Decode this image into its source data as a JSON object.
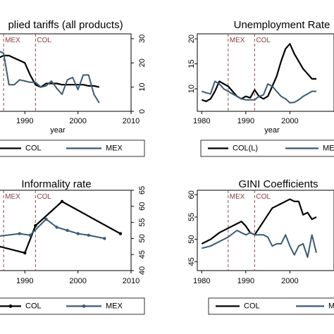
{
  "figure": {
    "colors": {
      "col": "#000000",
      "mex": "#3b5b72",
      "event_line": "#8a4a4a",
      "frame": "#000000"
    },
    "events": [
      {
        "label": "MEX",
        "year": 1986
      },
      {
        "label": "COL",
        "year": 1992
      }
    ]
  },
  "chart_data": [
    {
      "type": "line",
      "title": "Applied tariffs (all products)",
      "visible_title": "plied tariffs (all products)",
      "xlabel": "year",
      "ylabel": "",
      "xlim": [
        1982,
        2010
      ],
      "ylim": [
        0,
        32
      ],
      "xticks": [
        1990,
        2000,
        2010
      ],
      "yticks": [
        0,
        10,
        20,
        30
      ],
      "y_axis_side": "right",
      "legend_position": "bottom",
      "series": [
        {
          "name": "COL",
          "key": "col",
          "marker": "none",
          "x": [
            1984,
            1985,
            1986,
            1987,
            1988,
            1989,
            1990,
            1991,
            1992,
            1993,
            1994,
            1995,
            1996,
            1997,
            1998,
            1999,
            2000,
            2001,
            2002,
            2003,
            2004
          ],
          "y": [
            27,
            22,
            23,
            23,
            22,
            21,
            20,
            15,
            11,
            10,
            11.5,
            11.5,
            11.5,
            11,
            11,
            11,
            11,
            11,
            10.5,
            10.5,
            10
          ]
        },
        {
          "name": "MEX",
          "key": "mex",
          "marker": "none",
          "x": [
            1984,
            1985,
            1986,
            1987,
            1988,
            1989,
            1990,
            1991,
            1992,
            1993,
            1994,
            1995,
            1996,
            1997,
            1998,
            1999,
            2000,
            2001,
            2002,
            2003,
            2004
          ],
          "y": [
            23,
            25,
            24,
            11,
            11,
            13,
            12.5,
            12,
            12,
            10,
            10.5,
            12.5,
            9.5,
            7,
            13,
            14,
            9,
            15,
            15,
            7,
            3.5
          ]
        }
      ]
    },
    {
      "type": "line",
      "title": "Unemployment Rate",
      "visible_title": "Unemployment Rate",
      "xlabel": "year",
      "ylabel": "",
      "xlim": [
        1979,
        2010
      ],
      "ylim": [
        5.5,
        21
      ],
      "xticks": [
        1980,
        1990,
        2000
      ],
      "yticks": [
        5,
        10,
        15,
        20
      ],
      "y_axis_side": "left",
      "legend_position": "bottom",
      "series": [
        {
          "name": "COL(L)",
          "key": "col",
          "marker": "none",
          "x": [
            1980,
            1981,
            1982,
            1983,
            1984,
            1985,
            1986,
            1987,
            1988,
            1989,
            1990,
            1991,
            1992,
            1993,
            1994,
            1995,
            1996,
            1997,
            1998,
            1999,
            2000,
            2001,
            2002,
            2003,
            2004,
            2005,
            2006
          ],
          "y": [
            7.8,
            7.5,
            8.0,
            9.5,
            11.5,
            11.0,
            10.5,
            9.5,
            8.5,
            8.0,
            8.5,
            8.2,
            9.8,
            8.5,
            8.0,
            8.5,
            10.5,
            12.5,
            15.5,
            18.0,
            19.0,
            17.0,
            15.5,
            14.0,
            13.0,
            12.0,
            12.0
          ]
        },
        {
          "name": "MEX",
          "key": "mex",
          "marker": "none",
          "x": [
            1980,
            1981,
            1982,
            1983,
            1984,
            1985,
            1986,
            1987,
            1988,
            1989,
            1990,
            1991,
            1992,
            1993,
            1994,
            1995,
            1996,
            1997,
            1998,
            1999,
            2000,
            2001,
            2002,
            2003,
            2004,
            2005,
            2006
          ],
          "y": [
            9.5,
            9.2,
            9.0,
            11.5,
            11.0,
            10.0,
            9.5,
            9.0,
            8.5,
            8.0,
            7.8,
            7.8,
            7.8,
            8.5,
            8.8,
            11.0,
            10.5,
            9.5,
            8.5,
            8.0,
            7.2,
            7.3,
            7.8,
            8.5,
            9.0,
            9.5,
            9.5
          ]
        }
      ]
    },
    {
      "type": "line",
      "title": "Informality rate",
      "visible_title": "Informality rate",
      "xlabel": "",
      "ylabel": "",
      "xlim": [
        1982,
        2010
      ],
      "ylim": [
        40,
        65
      ],
      "xticks": [
        1990,
        2000,
        2010
      ],
      "yticks": [
        40,
        45,
        50,
        55,
        60,
        65
      ],
      "y_axis_side": "right",
      "legend_position": "bottom",
      "series": [
        {
          "name": "COL",
          "key": "col",
          "marker": "dot",
          "x": [
            1984,
            1990,
            1992,
            1997,
            2008
          ],
          "y": [
            48,
            45.5,
            54,
            61.5,
            51.5
          ]
        },
        {
          "name": "MEX",
          "key": "mex",
          "marker": "dot",
          "x": [
            1984,
            1989,
            1991,
            1994,
            1996,
            1998,
            2000,
            2002,
            2005
          ],
          "y": [
            50.5,
            51.5,
            51,
            56,
            53.5,
            52.5,
            51.5,
            51,
            50
          ]
        }
      ]
    },
    {
      "type": "line",
      "title": "GINI Coefficients",
      "visible_title": "GINI Coefficients",
      "xlabel": "",
      "ylabel": "",
      "xlim": [
        1979,
        2010
      ],
      "ylim": [
        43,
        61
      ],
      "xticks": [
        1980,
        1990,
        2000
      ],
      "yticks": [
        45,
        50,
        55,
        60
      ],
      "y_axis_side": "left",
      "legend_position": "bottom",
      "series": [
        {
          "name": "COL",
          "key": "col",
          "marker": "none",
          "x": [
            1980,
            1982,
            1984,
            1986,
            1988,
            1989,
            1990,
            1991,
            1992,
            1993,
            1994,
            1995,
            1996,
            1997,
            1998,
            1999,
            2000,
            2001,
            2002,
            2003,
            2004,
            2005,
            2006
          ],
          "y": [
            49,
            50,
            51.5,
            52.5,
            53.5,
            54,
            53,
            51.5,
            51,
            52.5,
            54,
            55.5,
            57,
            57.5,
            58,
            58.5,
            59,
            58.5,
            58.5,
            55.5,
            56,
            54.5,
            55
          ]
        },
        {
          "name": "MEX",
          "key": "mex",
          "marker": "none",
          "x": [
            1980,
            1982,
            1984,
            1986,
            1988,
            1989,
            1990,
            1991,
            1992,
            1993,
            1994,
            1995,
            1996,
            1997,
            1998,
            1999,
            2000,
            2001,
            2002,
            2003,
            2004,
            2005,
            2006
          ],
          "y": [
            48,
            48.5,
            49.5,
            50.5,
            52,
            51.5,
            51,
            51.5,
            51,
            51,
            51,
            50.5,
            48.5,
            49,
            49,
            51,
            48.5,
            46.5,
            48.5,
            49,
            46,
            51,
            47
          ]
        }
      ]
    }
  ],
  "legends": [
    {
      "items": [
        {
          "label": "COL",
          "key": "col",
          "marker": "none"
        },
        {
          "label": "MEX",
          "key": "mex",
          "marker": "none"
        }
      ]
    },
    {
      "items": [
        {
          "label": "COL(L)",
          "key": "col",
          "marker": "none"
        },
        {
          "label": "MEX",
          "visible_label": "ME",
          "key": "mex",
          "marker": "none"
        }
      ]
    },
    {
      "items": [
        {
          "label": "COL",
          "key": "col",
          "marker": "dot"
        },
        {
          "label": "MEX",
          "key": "mex",
          "marker": "dot"
        }
      ]
    },
    {
      "items": [
        {
          "label": "COL",
          "key": "col",
          "marker": "none"
        },
        {
          "label": "MEX",
          "visible_label": "M",
          "key": "mex",
          "marker": "none"
        }
      ]
    }
  ]
}
